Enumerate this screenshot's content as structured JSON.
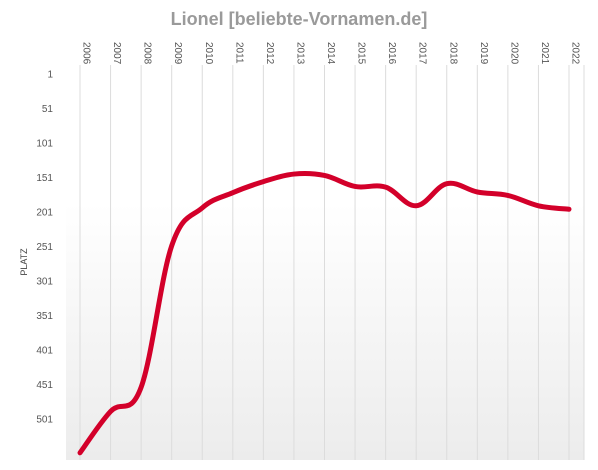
{
  "chart_data": {
    "type": "line",
    "title": "Lionel [beliebte-Vornamen.de]",
    "ylabel": "PLATZ",
    "xlabel": "",
    "x": [
      "2006",
      "2007",
      "2008",
      "2009",
      "2010",
      "2011",
      "2012",
      "2013",
      "2014",
      "2015",
      "2016",
      "2017",
      "2018",
      "2019",
      "2020",
      "2021",
      "2022"
    ],
    "y_ticks": [
      "1",
      "51",
      "101",
      "151",
      "201",
      "251",
      "301",
      "351",
      "401",
      "451",
      "501"
    ],
    "ylim": [
      1,
      551
    ],
    "y_inverted": true,
    "grid": "vertical",
    "series": [
      {
        "color": "#d3002a",
        "values": [
          550,
          490,
          455,
          250,
          195,
          173,
          157,
          146,
          148,
          164,
          165,
          192,
          160,
          172,
          177,
          192,
          197
        ]
      }
    ]
  }
}
